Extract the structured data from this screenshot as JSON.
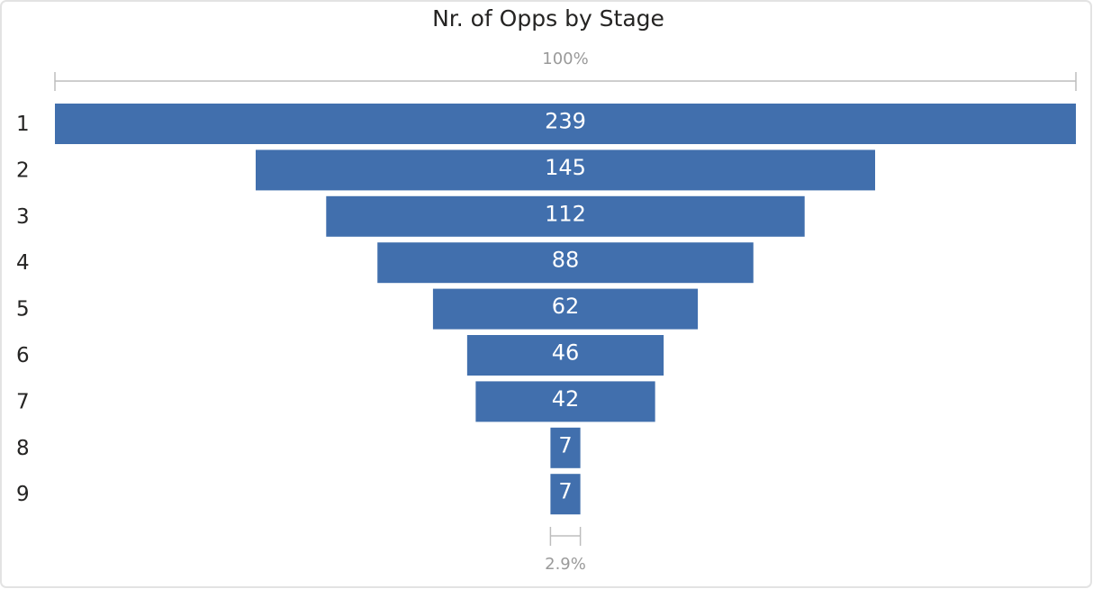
{
  "chart_data": {
    "type": "funnel",
    "title": "Nr. of Opps by Stage",
    "categories": [
      "1",
      "2",
      "3",
      "4",
      "5",
      "6",
      "7",
      "8",
      "9"
    ],
    "values": [
      239,
      145,
      112,
      88,
      62,
      46,
      42,
      7,
      7
    ],
    "color": "#416fad",
    "top_annotation": "100%",
    "bottom_annotation": "2.9%"
  }
}
